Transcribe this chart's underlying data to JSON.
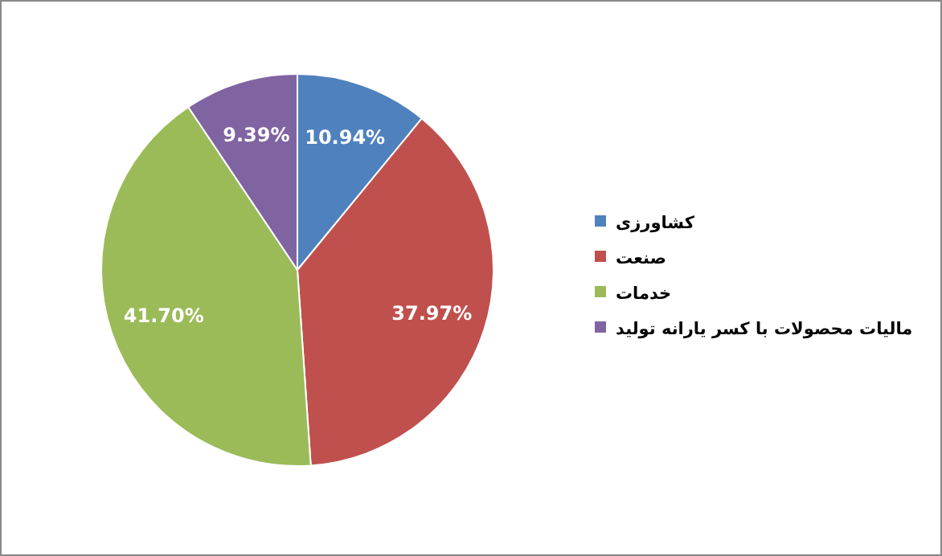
{
  "chart_data": {
    "type": "pie",
    "categories": [
      "کشاورزی",
      "صنعت",
      "خدمات",
      "مالیات محصولات با کسر یارانه تولید"
    ],
    "values": [
      10.94,
      37.97,
      41.7,
      9.39
    ],
    "colors": [
      "#4f81bd",
      "#c0504d",
      "#9bbb59",
      "#8064a2"
    ],
    "value_labels": [
      "10.94%",
      "37.97%",
      "41.70%",
      "9.39%"
    ],
    "legend": "right"
  }
}
